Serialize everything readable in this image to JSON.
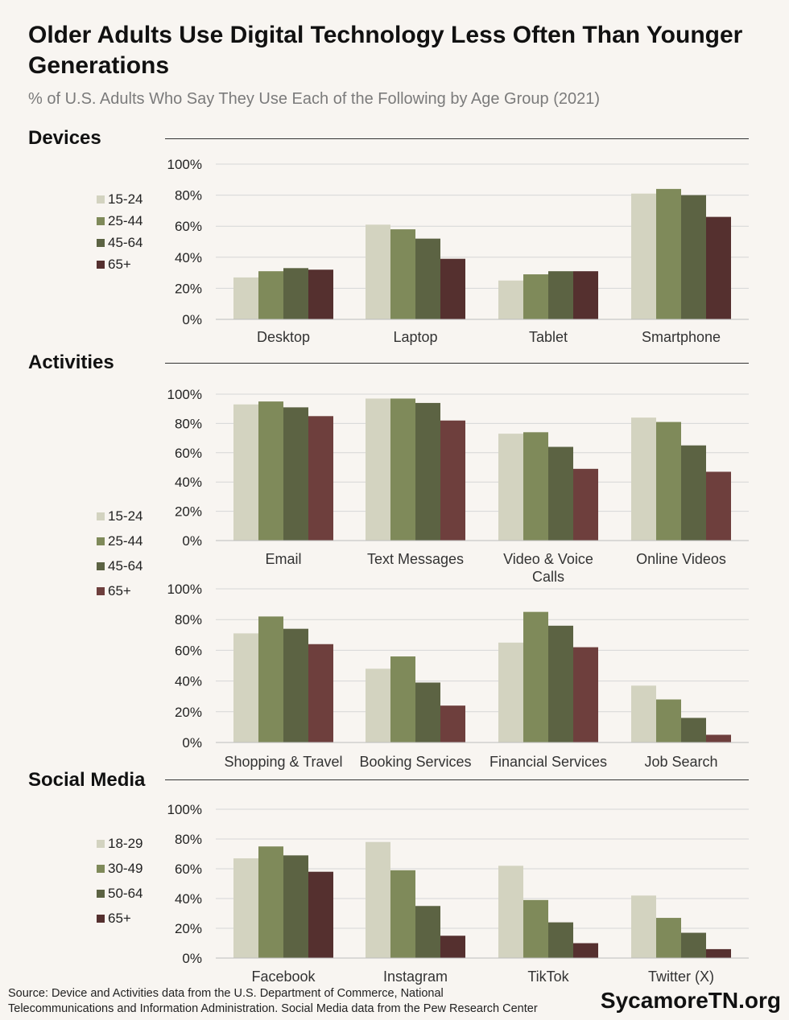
{
  "title": "Older Adults Use Digital Technology Less Often Than Younger Generations",
  "subtitle": "% of U.S. Adults Who Say They Use Each of the Following by Age Group (2021)",
  "sections": {
    "devices": {
      "title": "Devices"
    },
    "activities": {
      "title": "Activities"
    },
    "social": {
      "title": "Social Media"
    }
  },
  "colors": {
    "devices": [
      "#d3d3c0",
      "#7f8a5a",
      "#5c6343",
      "#55302f"
    ],
    "activities": [
      "#d3d3c0",
      "#7f8a5a",
      "#5c6343",
      "#6e3f3d"
    ],
    "social": [
      "#d3d3c0",
      "#7f8a5a",
      "#5c6343",
      "#55302f"
    ]
  },
  "legends": {
    "devices": [
      "15-24",
      "25-44",
      "45-64",
      "65+"
    ],
    "activities": [
      "15-24",
      "25-44",
      "45-64",
      "65+"
    ],
    "social": [
      "18-29",
      "30-49",
      "50-64",
      "65+"
    ]
  },
  "chart_data": [
    {
      "type": "bar",
      "title": "Devices",
      "categories": [
        "Desktop",
        "Laptop",
        "Tablet",
        "Smartphone"
      ],
      "yticks": [
        "100%",
        "80%",
        "60%",
        "40%",
        "20%",
        "0%"
      ],
      "ylim": [
        0,
        100
      ],
      "series": [
        {
          "name": "15-24",
          "values": [
            27,
            61,
            25,
            81
          ]
        },
        {
          "name": "25-44",
          "values": [
            31,
            58,
            29,
            84
          ]
        },
        {
          "name": "45-64",
          "values": [
            33,
            52,
            31,
            80
          ]
        },
        {
          "name": "65+",
          "values": [
            32,
            39,
            31,
            66
          ]
        }
      ]
    },
    {
      "type": "bar",
      "title": "Activities",
      "categories": [
        "Email",
        "Text Messages",
        "Video & Voice Calls",
        "Online Videos"
      ],
      "yticks": [
        "100%",
        "80%",
        "60%",
        "40%",
        "20%",
        "0%"
      ],
      "ylim": [
        0,
        100
      ],
      "series": [
        {
          "name": "15-24",
          "values": [
            93,
            97,
            73,
            84
          ]
        },
        {
          "name": "25-44",
          "values": [
            95,
            97,
            74,
            81
          ]
        },
        {
          "name": "45-64",
          "values": [
            91,
            94,
            64,
            65
          ]
        },
        {
          "name": "65+",
          "values": [
            85,
            82,
            49,
            47
          ]
        }
      ]
    },
    {
      "type": "bar",
      "title": "Activities",
      "categories": [
        "Shopping & Travel",
        "Booking Services",
        "Financial Services",
        "Job Search"
      ],
      "yticks": [
        "100%",
        "80%",
        "60%",
        "40%",
        "20%",
        "0%"
      ],
      "ylim": [
        0,
        100
      ],
      "series": [
        {
          "name": "15-24",
          "values": [
            71,
            48,
            65,
            37
          ]
        },
        {
          "name": "25-44",
          "values": [
            82,
            56,
            85,
            28
          ]
        },
        {
          "name": "45-64",
          "values": [
            74,
            39,
            76,
            16
          ]
        },
        {
          "name": "65+",
          "values": [
            64,
            24,
            62,
            5
          ]
        }
      ]
    },
    {
      "type": "bar",
      "title": "Social Media",
      "categories": [
        "Facebook",
        "Instagram",
        "TikTok",
        "Twitter (X)"
      ],
      "yticks": [
        "100%",
        "80%",
        "60%",
        "40%",
        "20%",
        "0%"
      ],
      "ylim": [
        0,
        100
      ],
      "series": [
        {
          "name": "18-29",
          "values": [
            67,
            78,
            62,
            42
          ]
        },
        {
          "name": "30-49",
          "values": [
            75,
            59,
            39,
            27
          ]
        },
        {
          "name": "50-64",
          "values": [
            69,
            35,
            24,
            17
          ]
        },
        {
          "name": "65+",
          "values": [
            58,
            15,
            10,
            6
          ]
        }
      ]
    }
  ],
  "footer": {
    "source_line1": "Source: Device and Activities data from the U.S. Department of Commerce, National",
    "source_line2": "Telecommunications and Information Administration. Social Media data from the Pew Research Center",
    "brand": "SycamoreTN.org"
  }
}
